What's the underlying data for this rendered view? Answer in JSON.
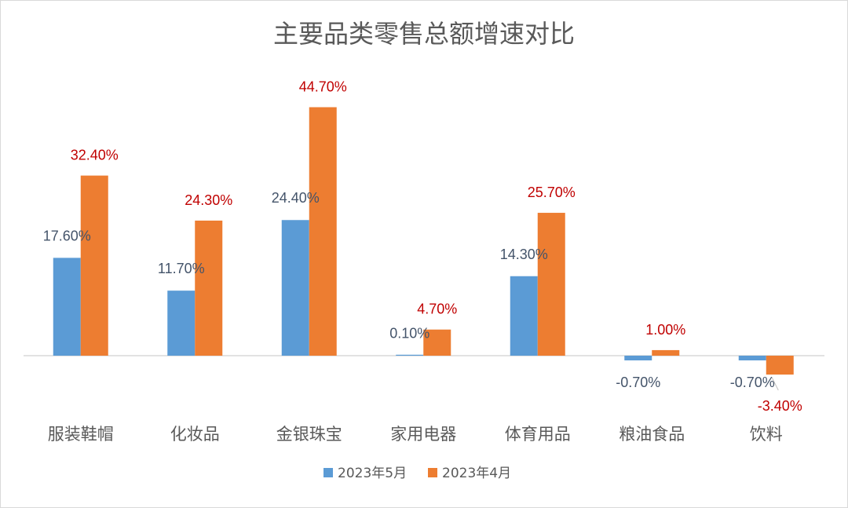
{
  "chart_data": {
    "type": "bar",
    "title": "主要品类零售总额增速对比",
    "categories": [
      "服装鞋帽",
      "化妆品",
      "金银珠宝",
      "家用电器",
      "体育用品",
      "粮油食品",
      "饮料"
    ],
    "series": [
      {
        "name": "2023年5月",
        "color": "#5b9bd5",
        "label_color": "#44546a",
        "values": [
          17.6,
          11.7,
          24.4,
          0.1,
          14.3,
          -0.7,
          -0.7
        ],
        "labels": [
          "17.60%",
          "11.70%",
          "24.40%",
          "0.10%",
          "14.30%",
          "-0.70%",
          "-0.70%"
        ]
      },
      {
        "name": "2023年4月",
        "color": "#ed7d31",
        "label_color": "#c00000",
        "values": [
          32.4,
          24.3,
          44.7,
          4.7,
          25.7,
          1.0,
          -3.4
        ],
        "labels": [
          "32.40%",
          "24.30%",
          "44.70%",
          "4.70%",
          "25.70%",
          "1.00%",
          "-3.40%"
        ]
      }
    ],
    "xlabel": "",
    "ylabel": "",
    "gridlines": false,
    "legend_position": "bottom"
  }
}
